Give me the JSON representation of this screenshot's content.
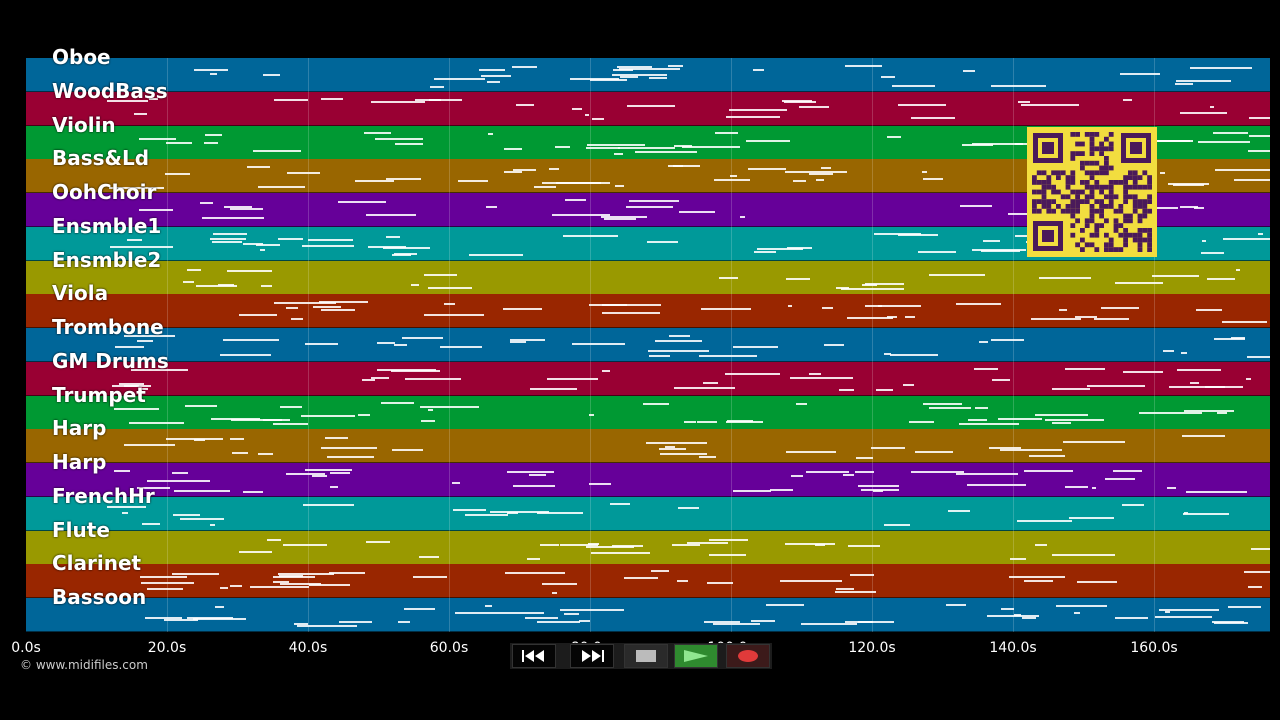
{
  "tracks": [
    {
      "name": "Oboe",
      "color": "#006699"
    },
    {
      "name": "WoodBass",
      "color": "#990033"
    },
    {
      "name": "Violin",
      "color": "#009933"
    },
    {
      "name": "Bass&Ld",
      "color": "#996600"
    },
    {
      "name": "OohChoir",
      "color": "#660099"
    },
    {
      "name": "Ensmble1",
      "color": "#009999"
    },
    {
      "name": "Ensmble2",
      "color": "#999900"
    },
    {
      "name": "Viola",
      "color": "#992600"
    },
    {
      "name": "Trombone",
      "color": "#006699"
    },
    {
      "name": "GM Drums",
      "color": "#990033"
    },
    {
      "name": "Trumpet",
      "color": "#009933"
    },
    {
      "name": "Harp",
      "color": "#996600"
    },
    {
      "name": "Harp",
      "color": "#660099"
    },
    {
      "name": "FrenchHr",
      "color": "#009999"
    },
    {
      "name": "Flute",
      "color": "#999900"
    },
    {
      "name": "Clarinet",
      "color": "#992600"
    },
    {
      "name": "Bassoon",
      "color": "#006699"
    }
  ],
  "time_axis": {
    "ticks": [
      "0.0s",
      "20.0s",
      "40.0s",
      "60.0s",
      "80.0s",
      "100.0s",
      "120.0s",
      "140.0s",
      "160.0s"
    ]
  },
  "copyright": "© www.midifiles.com",
  "controls": {
    "rewind": "rewind-icon",
    "fast_forward": "fast-forward-icon",
    "stop": "stop-icon",
    "play": "play-icon",
    "record": "record-icon"
  },
  "qr_code": "qr-code"
}
